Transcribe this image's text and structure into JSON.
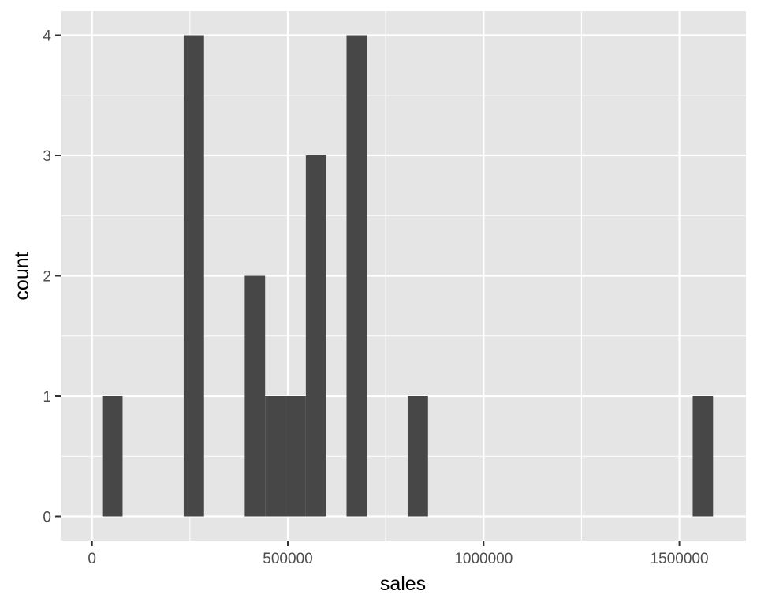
{
  "chart_data": {
    "type": "bar",
    "xlabel": "sales",
    "ylabel": "count",
    "xlim": [
      -80000,
      1670000
    ],
    "ylim": [
      -0.2,
      4.2
    ],
    "x_ticks": [
      0,
      500000,
      1000000,
      1500000
    ],
    "x_tick_labels": [
      "0",
      "500000",
      "1000000",
      "1500000"
    ],
    "y_ticks": [
      0,
      1,
      2,
      3,
      4
    ],
    "y_tick_labels": [
      "0",
      "1",
      "2",
      "3",
      "4"
    ],
    "bin_width": 52000,
    "bins": [
      {
        "x0": 26000,
        "x1": 78000,
        "count": 1
      },
      {
        "x0": 234000,
        "x1": 286000,
        "count": 4
      },
      {
        "x0": 390000,
        "x1": 442000,
        "count": 2
      },
      {
        "x0": 442000,
        "x1": 494000,
        "count": 1
      },
      {
        "x0": 494000,
        "x1": 546000,
        "count": 1
      },
      {
        "x0": 546000,
        "x1": 598000,
        "count": 3
      },
      {
        "x0": 650000,
        "x1": 702000,
        "count": 4
      },
      {
        "x0": 806000,
        "x1": 858000,
        "count": 1
      },
      {
        "x0": 1534000,
        "x1": 1586000,
        "count": 1
      }
    ],
    "grid": true,
    "colors": {
      "panel": "#e5e5e5",
      "grid": "#ffffff",
      "bar": "#474747",
      "tick_text": "#4d4d4d",
      "title_text": "#000000"
    }
  }
}
